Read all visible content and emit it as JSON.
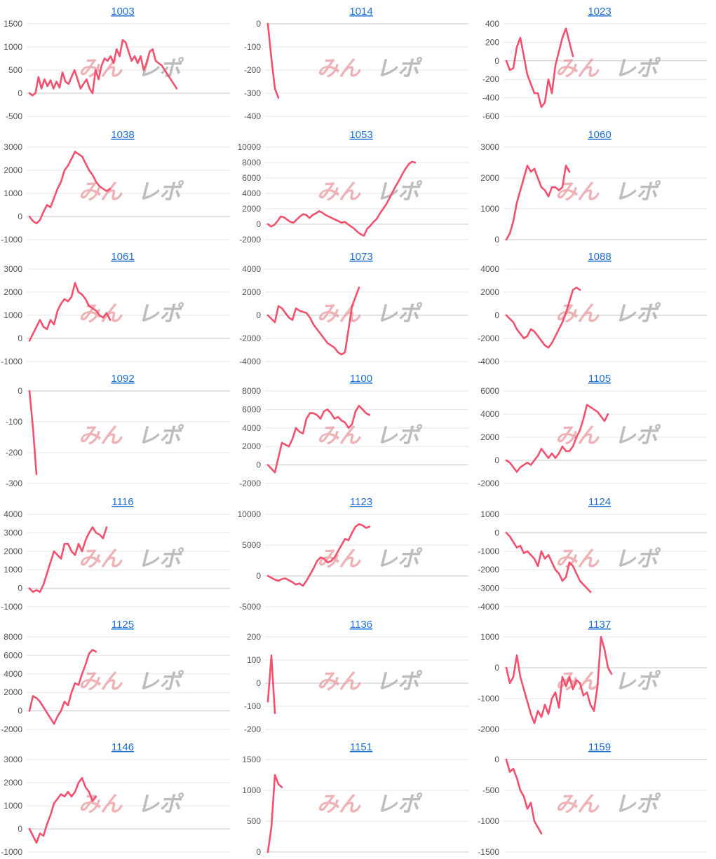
{
  "watermark": {
    "part1": "みん",
    "part2": "レポ"
  },
  "colors": {
    "line": "#f2506e",
    "title": "#1f6fd1",
    "grid": "#e6e6e6",
    "zero": "#c8c8c8",
    "tick": "#555555"
  },
  "chart_data": [
    {
      "type": "line",
      "title": "1003",
      "yticks": [
        1500,
        1000,
        500,
        0,
        -500
      ],
      "ylim": [
        -500,
        1500
      ],
      "values": [
        0,
        -50,
        0,
        350,
        100,
        300,
        150,
        280,
        100,
        250,
        120,
        450,
        250,
        200,
        350,
        500,
        300,
        100,
        200,
        300,
        100,
        0,
        500,
        300,
        600,
        750,
        700,
        800,
        650,
        950,
        800,
        1150,
        1100,
        900,
        700,
        800,
        650,
        800,
        500,
        650,
        900,
        950,
        700,
        650,
        600,
        500,
        400,
        300,
        200,
        100
      ]
    },
    {
      "type": "line",
      "title": "1014",
      "yticks": [
        0,
        -100,
        -200,
        -300,
        -400
      ],
      "ylim": [
        -400,
        0
      ],
      "values": [
        0,
        -150,
        -280,
        -320
      ]
    },
    {
      "type": "line",
      "title": "1023",
      "yticks": [
        400,
        200,
        0,
        -200,
        -400,
        -600
      ],
      "ylim": [
        -600,
        400
      ],
      "values": [
        0,
        -100,
        -80,
        150,
        250,
        50,
        -150,
        -250,
        -350,
        -350,
        -500,
        -450,
        -200,
        -350,
        -50,
        100,
        250,
        350,
        200,
        50
      ]
    },
    {
      "type": "line",
      "title": "1038",
      "yticks": [
        3000,
        2000,
        1000,
        0,
        -1000
      ],
      "ylim": [
        -1000,
        3000
      ],
      "values": [
        0,
        -200,
        -300,
        -150,
        200,
        500,
        400,
        800,
        1200,
        1500,
        2000,
        2200,
        2500,
        2800,
        2700,
        2600,
        2300,
        2000,
        1800,
        1500,
        1300,
        1200,
        1100,
        1200
      ]
    },
    {
      "type": "line",
      "title": "1053",
      "yticks": [
        10000,
        8000,
        6000,
        4000,
        2000,
        0,
        -2000
      ],
      "ylim": [
        -2000,
        10000
      ],
      "values": [
        0,
        -300,
        -100,
        400,
        1000,
        900,
        600,
        300,
        200,
        600,
        1000,
        1300,
        1200,
        800,
        1200,
        1400,
        1700,
        1500,
        1200,
        1000,
        800,
        600,
        400,
        200,
        300,
        0,
        -300,
        -600,
        -1000,
        -1300,
        -1500,
        -600,
        -200,
        300,
        700,
        1400,
        2000,
        2600,
        3400,
        4200,
        5000,
        5700,
        6500,
        7200,
        7800,
        8100,
        8000
      ]
    },
    {
      "type": "line",
      "title": "1060",
      "yticks": [
        3000,
        2000,
        1000,
        0
      ],
      "ylim": [
        0,
        3000
      ],
      "values": [
        0,
        200,
        600,
        1200,
        1600,
        2000,
        2400,
        2200,
        2300,
        2000,
        1700,
        1600,
        1400,
        1700,
        1700,
        1600,
        1700,
        2400,
        2200
      ]
    },
    {
      "type": "line",
      "title": "1061",
      "yticks": [
        3000,
        2000,
        1000,
        0,
        -1000
      ],
      "ylim": [
        -1000,
        3000
      ],
      "values": [
        -100,
        200,
        500,
        800,
        500,
        400,
        800,
        600,
        1200,
        1500,
        1700,
        1600,
        1800,
        2400,
        2000,
        1900,
        1700,
        1400,
        1300,
        1200,
        1000,
        900,
        1100,
        800
      ]
    },
    {
      "type": "line",
      "title": "1073",
      "yticks": [
        4000,
        2000,
        0,
        -2000,
        -4000
      ],
      "ylim": [
        -4000,
        4000
      ],
      "values": [
        0,
        -300,
        -600,
        800,
        600,
        200,
        -200,
        -400,
        600,
        400,
        300,
        200,
        -200,
        -800,
        -1200,
        -1600,
        -2000,
        -2400,
        -2600,
        -2800,
        -3200,
        -3400,
        -3200,
        -1200,
        800,
        1600,
        2400
      ]
    },
    {
      "type": "line",
      "title": "1088",
      "yticks": [
        4000,
        2000,
        0,
        -2000,
        -4000
      ],
      "ylim": [
        -4000,
        4000
      ],
      "values": [
        0,
        -300,
        -600,
        -1200,
        -1600,
        -2000,
        -1800,
        -1200,
        -1400,
        -1800,
        -2200,
        -2600,
        -2800,
        -2400,
        -1800,
        -1200,
        -600,
        200,
        1200,
        2200,
        2400,
        2200
      ]
    },
    {
      "type": "line",
      "title": "1092",
      "yticks": [
        0,
        -100,
        -200,
        -300
      ],
      "ylim": [
        -300,
        0
      ],
      "values": [
        0,
        -120,
        -270
      ]
    },
    {
      "type": "line",
      "title": "1100",
      "yticks": [
        8000,
        6000,
        4000,
        2000,
        0,
        -2000
      ],
      "ylim": [
        -2000,
        8000
      ],
      "values": [
        0,
        -400,
        -800,
        800,
        2400,
        2200,
        2000,
        2800,
        4000,
        3600,
        3400,
        5000,
        5600,
        5600,
        5400,
        5000,
        5800,
        6000,
        5600,
        5000,
        5200,
        4800,
        4600,
        4000,
        4400,
        5800,
        6400,
        6000,
        5600,
        5400
      ]
    },
    {
      "type": "line",
      "title": "1105",
      "yticks": [
        6000,
        4000,
        2000,
        0,
        -2000
      ],
      "ylim": [
        -2000,
        6000
      ],
      "values": [
        0,
        -200,
        -600,
        -1000,
        -600,
        -400,
        -200,
        -400,
        0,
        400,
        1000,
        600,
        200,
        600,
        200,
        600,
        1200,
        800,
        800,
        1200,
        2000,
        2600,
        3600,
        4800,
        4600,
        4400,
        4200,
        3800,
        3400,
        4000
      ]
    },
    {
      "type": "line",
      "title": "1116",
      "yticks": [
        4000,
        3000,
        2000,
        1000,
        0,
        -1000
      ],
      "ylim": [
        -1000,
        4000
      ],
      "values": [
        0,
        -200,
        -100,
        -200,
        200,
        800,
        1400,
        2000,
        1800,
        1600,
        2400,
        2400,
        2000,
        1800,
        2400,
        2000,
        2600,
        3000,
        3300,
        3000,
        2900,
        2700,
        3300
      ]
    },
    {
      "type": "line",
      "title": "1123",
      "yticks": [
        10000,
        5000,
        0,
        -5000
      ],
      "ylim": [
        -5000,
        10000
      ],
      "values": [
        0,
        -300,
        -600,
        -800,
        -500,
        -400,
        -700,
        -1000,
        -1400,
        -1200,
        -1600,
        -800,
        200,
        1200,
        2400,
        3000,
        2800,
        2200,
        2400,
        3000,
        4000,
        5000,
        6000,
        5800,
        7000,
        8000,
        8400,
        8200,
        7800,
        8000
      ]
    },
    {
      "type": "line",
      "title": "1124",
      "yticks": [
        1000,
        0,
        -1000,
        -2000,
        -3000,
        -4000
      ],
      "ylim": [
        -4000,
        1000
      ],
      "values": [
        0,
        -200,
        -500,
        -800,
        -700,
        -1100,
        -1000,
        -1200,
        -1400,
        -1800,
        -1000,
        -1400,
        -1200,
        -1600,
        -2000,
        -2200,
        -2600,
        -2400,
        -1600,
        -1800,
        -2200,
        -2600,
        -2800,
        -3000,
        -3200
      ]
    },
    {
      "type": "line",
      "title": "1125",
      "yticks": [
        8000,
        6000,
        4000,
        2000,
        0,
        -2000
      ],
      "ylim": [
        -2000,
        8000
      ],
      "values": [
        0,
        1600,
        1400,
        1000,
        400,
        -200,
        -800,
        -1400,
        -600,
        0,
        1000,
        600,
        2000,
        3000,
        2800,
        4000,
        5000,
        6200,
        6600,
        6400
      ]
    },
    {
      "type": "line",
      "title": "1136",
      "yticks": [
        200,
        100,
        0,
        -100,
        -200
      ],
      "ylim": [
        -200,
        200
      ],
      "values": [
        -80,
        120,
        -130
      ]
    },
    {
      "type": "line",
      "title": "1137",
      "yticks": [
        1000,
        0,
        -1000,
        -2000
      ],
      "ylim": [
        -2000,
        1000
      ],
      "values": [
        0,
        -500,
        -300,
        400,
        -300,
        -700,
        -1100,
        -1500,
        -1800,
        -1400,
        -1600,
        -1200,
        -1500,
        -1000,
        -800,
        -1300,
        -300,
        -600,
        -300,
        -700,
        -400,
        -500,
        -900,
        -800,
        -1200,
        -1400,
        -600,
        1000,
        600,
        0,
        -200
      ]
    },
    {
      "type": "line",
      "title": "1146",
      "yticks": [
        3000,
        2000,
        1000,
        0,
        -1000
      ],
      "ylim": [
        -1000,
        3000
      ],
      "values": [
        0,
        -300,
        -600,
        -200,
        -300,
        200,
        600,
        1100,
        1300,
        1500,
        1400,
        1600,
        1400,
        1600,
        2000,
        2200,
        1800,
        1600,
        1200,
        1400
      ]
    },
    {
      "type": "line",
      "title": "1151",
      "yticks": [
        1500,
        1000,
        500,
        0
      ],
      "ylim": [
        0,
        1500
      ],
      "values": [
        0,
        400,
        1250,
        1100,
        1050
      ]
    },
    {
      "type": "line",
      "title": "1159",
      "yticks": [
        0,
        -500,
        -1000,
        -1500
      ],
      "ylim": [
        -1500,
        0
      ],
      "values": [
        0,
        -200,
        -150,
        -300,
        -500,
        -600,
        -800,
        -700,
        -1000,
        -1100,
        -1200
      ]
    }
  ]
}
